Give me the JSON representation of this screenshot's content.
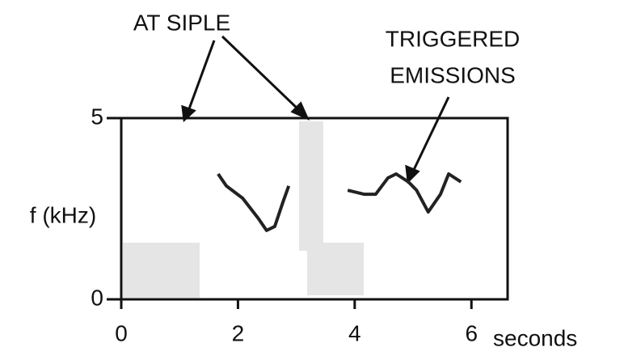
{
  "chart_data": {
    "type": "line",
    "annotations": [
      "AT SIPLE",
      "TRIGGERED",
      "EMISSIONS"
    ],
    "ylabel": "f (kHz)",
    "xlabel": "seconds",
    "x": [
      1.66,
      1.8,
      2.08,
      2.35,
      2.49,
      2.63,
      2.77,
      2.87,
      3.0,
      3.88,
      4.16,
      4.36,
      4.57,
      4.71,
      4.92,
      5.06,
      5.26,
      5.47,
      5.61,
      5.82
    ],
    "values": [
      3.46,
      3.13,
      2.79,
      2.23,
      1.9,
      2.01,
      2.68,
      3.13,
      null,
      3.01,
      2.9,
      2.9,
      3.35,
      3.46,
      3.24,
      3.01,
      2.41,
      2.9,
      3.46,
      3.24
    ],
    "color": "#222",
    "xlim": [
      0,
      6.62
    ],
    "ylim": [
      0,
      5
    ],
    "xticks": [
      0,
      2,
      4,
      6
    ],
    "yticks": [
      0,
      5
    ]
  }
}
